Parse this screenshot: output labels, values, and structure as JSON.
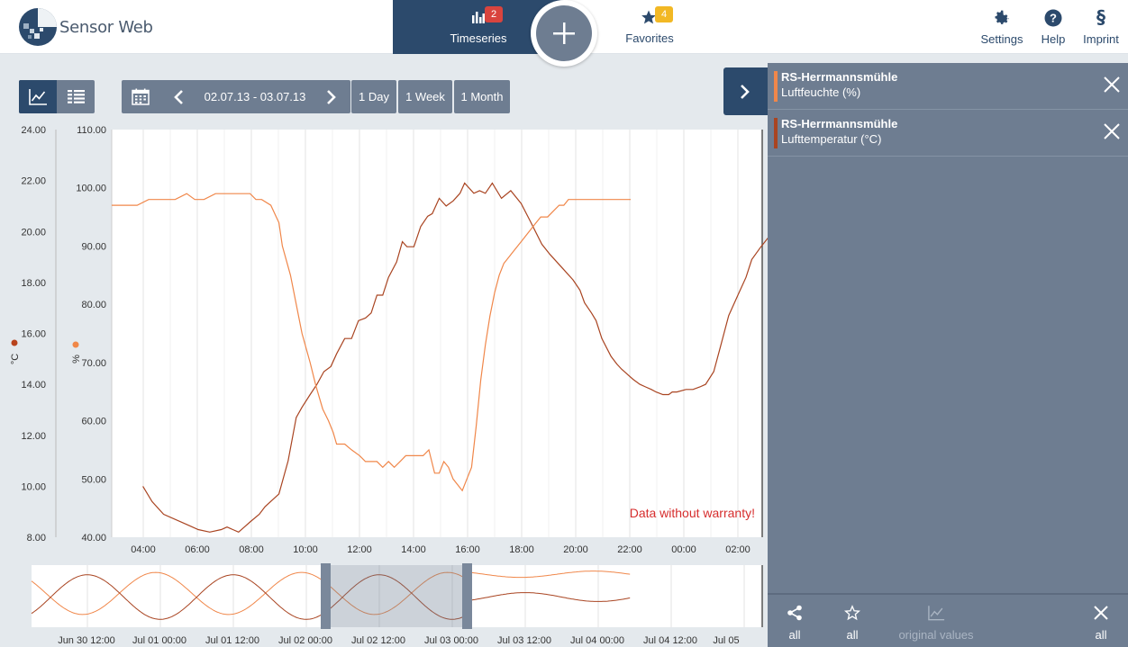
{
  "header": {
    "logo_text": "Sensor Web",
    "nav": {
      "timeseries": {
        "label": "Timeseries",
        "badge": "2"
      },
      "favorites": {
        "label": "Favorites",
        "badge": "4"
      }
    },
    "settings_label": "Settings",
    "help_label": "Help",
    "imprint_label": "Imprint"
  },
  "toolbar": {
    "date_range": "02.07.13 - 03.07.13",
    "presets": [
      "1 Day",
      "1 Week",
      "1 Month"
    ]
  },
  "chart": {
    "warranty": "Data without warranty!"
  },
  "chart_data": [
    {
      "type": "line",
      "x_ticks": [
        "04:00",
        "06:00",
        "08:00",
        "10:00",
        "12:00",
        "14:00",
        "16:00",
        "18:00",
        "20:00",
        "22:00",
        "00:00",
        "02:00"
      ],
      "y_axes": [
        {
          "unit": "°C",
          "ylim": [
            8,
            24
          ],
          "ticks": [
            "24.00",
            "22.00",
            "20.00",
            "18.00",
            "16.00",
            "14.00",
            "12.00",
            "10.00",
            "8.00"
          ],
          "color": "#b8431d"
        },
        {
          "unit": "%",
          "ylim": [
            40,
            110
          ],
          "ticks": [
            "110.00",
            "100.00",
            "90.00",
            "80.00",
            "70.00",
            "60.00",
            "50.00",
            "40.00"
          ],
          "color": "#f08748"
        }
      ],
      "series": [
        {
          "axis": 0,
          "color": "#a94421",
          "x": [
            2.7,
            3.5,
            4.5,
            6.5,
            7.5,
            8.5,
            9.5,
            10.0,
            10.5,
            11.0,
            11.5,
            12.0,
            12.8,
            13.3,
            14.5,
            15.3,
            16.0,
            16.5,
            17.2,
            17.8,
            18.4,
            19.0,
            19.5,
            20.2,
            20.8,
            21.4,
            22.0,
            22.5,
            23.0,
            23.5,
            24.0,
            24.7,
            25.2,
            25.6,
            26.2,
            26.8,
            27.4,
            27.8,
            28.4,
            29.0,
            29.6,
            30.2,
            30.6,
            31.4,
            31.9,
            32.4,
            33.0,
            33.8,
            34.6,
            35.5,
            36.3,
            37.3,
            38.0,
            39.2,
            40.0,
            40.6,
            41.0,
            41.6,
            42.0,
            42.5,
            43.3,
            43.8,
            44.2,
            44.7,
            45.2,
            45.8,
            46.3,
            46.8,
            47.2,
            47.8,
            48.3,
            48.6,
            49.0,
            49.8,
            50.4,
            51.0,
            51.5,
            52.2,
            52.8,
            53.5,
            54.3,
            55.0,
            55.5,
            56.3,
            57.0
          ],
          "y": [
            10.0,
            9.4,
            8.9,
            8.5,
            8.3,
            8.2,
            8.3,
            8.4,
            8.3,
            8.2,
            8.4,
            8.6,
            8.9,
            9.2,
            9.7,
            11.0,
            12.7,
            13.1,
            13.6,
            14.0,
            14.5,
            14.7,
            15.2,
            15.8,
            15.8,
            16.5,
            16.6,
            16.8,
            17.5,
            17.5,
            18.2,
            18.8,
            19.6,
            19.4,
            19.4,
            20.2,
            20.6,
            20.7,
            21.3,
            21.0,
            21.2,
            21.5,
            21.9,
            21.5,
            21.6,
            21.5,
            21.9,
            21.3,
            21.6,
            21.1,
            20.4,
            19.5,
            19.1,
            18.5,
            18.1,
            17.7,
            17.2,
            16.8,
            16.5,
            15.8,
            15.1,
            14.8,
            14.6,
            14.4,
            14.2,
            14.0,
            13.9,
            13.8,
            13.7,
            13.6,
            13.6,
            13.7,
            13.7,
            13.8,
            13.8,
            13.9,
            14.0,
            14.5,
            15.5,
            16.7,
            17.5,
            18.2,
            18.9,
            19.4,
            19.8
          ]
        },
        {
          "axis": 1,
          "color": "#f0874a",
          "x": [
            0.0,
            1.2,
            2.2,
            3.2,
            3.6,
            4.5,
            5.5,
            6.5,
            7.2,
            7.6,
            8.0,
            9.0,
            9.5,
            10.0,
            10.5,
            11.2,
            12.0,
            12.5,
            13.0,
            13.8,
            14.5,
            14.8,
            15.5,
            16.0,
            16.5,
            17.2,
            17.7,
            18.3,
            18.8,
            19.2,
            19.5,
            20.2,
            20.8,
            21.5,
            22.0,
            22.5,
            23.0,
            23.5,
            24.0,
            24.5,
            25.0,
            25.5,
            26.0,
            26.5,
            27.0,
            27.5,
            28.0,
            28.4,
            28.8,
            29.2,
            29.6,
            30.0,
            30.4,
            30.8,
            31.2,
            31.6,
            32.0,
            32.4,
            32.8,
            33.2,
            33.6,
            34.0,
            34.4,
            34.8,
            35.2,
            35.6,
            36.0,
            36.4,
            36.8,
            37.2,
            37.8,
            38.3,
            38.8,
            39.2,
            39.6,
            40.0,
            40.5,
            41.0,
            41.5,
            42.0,
            42.5,
            43.0,
            43.5,
            44.0,
            44.5,
            45.0
          ],
          "y": [
            97,
            97,
            97,
            98,
            98,
            98,
            98,
            99,
            98,
            98,
            98,
            99,
            99,
            99,
            99,
            99,
            99,
            98,
            98,
            97,
            94,
            90,
            85,
            80,
            75,
            70,
            66,
            62,
            60,
            58,
            56,
            56,
            55,
            54,
            53,
            53,
            53,
            52,
            53,
            52,
            53,
            54,
            54,
            54,
            54,
            55,
            51,
            51,
            53,
            52,
            50,
            49,
            48,
            50,
            52,
            59,
            67,
            73,
            78,
            82,
            85,
            87,
            88,
            89,
            90,
            91,
            92,
            93,
            94,
            95,
            95,
            96,
            97,
            97,
            98,
            98,
            98,
            98,
            98,
            98,
            98,
            98,
            98,
            98,
            98,
            98
          ]
        }
      ]
    },
    {
      "type": "line",
      "x_ticks": [
        "Jun 30 12:00",
        "Jul 01 00:00",
        "Jul 01 12:00",
        "Jul 02 00:00",
        "Jul 02 12:00",
        "Jul 03 00:00",
        "Jul 03 12:00",
        "Jul 04 00:00",
        "Jul 04 12:00",
        "Jul 05"
      ]
    }
  ],
  "sidebar": {
    "items": [
      {
        "station": "RS-Herrmannsmühle",
        "phenomenon": "Luftfeuchte (%)",
        "color": "#f0874a"
      },
      {
        "station": "RS-Herrmannsmühle",
        "phenomenon": "Lufttemperatur (°C)",
        "color": "#a94421"
      }
    ]
  },
  "bottom": {
    "share_label": "all",
    "favorite_label": "all",
    "original_label": "original values",
    "remove_label": "all"
  }
}
